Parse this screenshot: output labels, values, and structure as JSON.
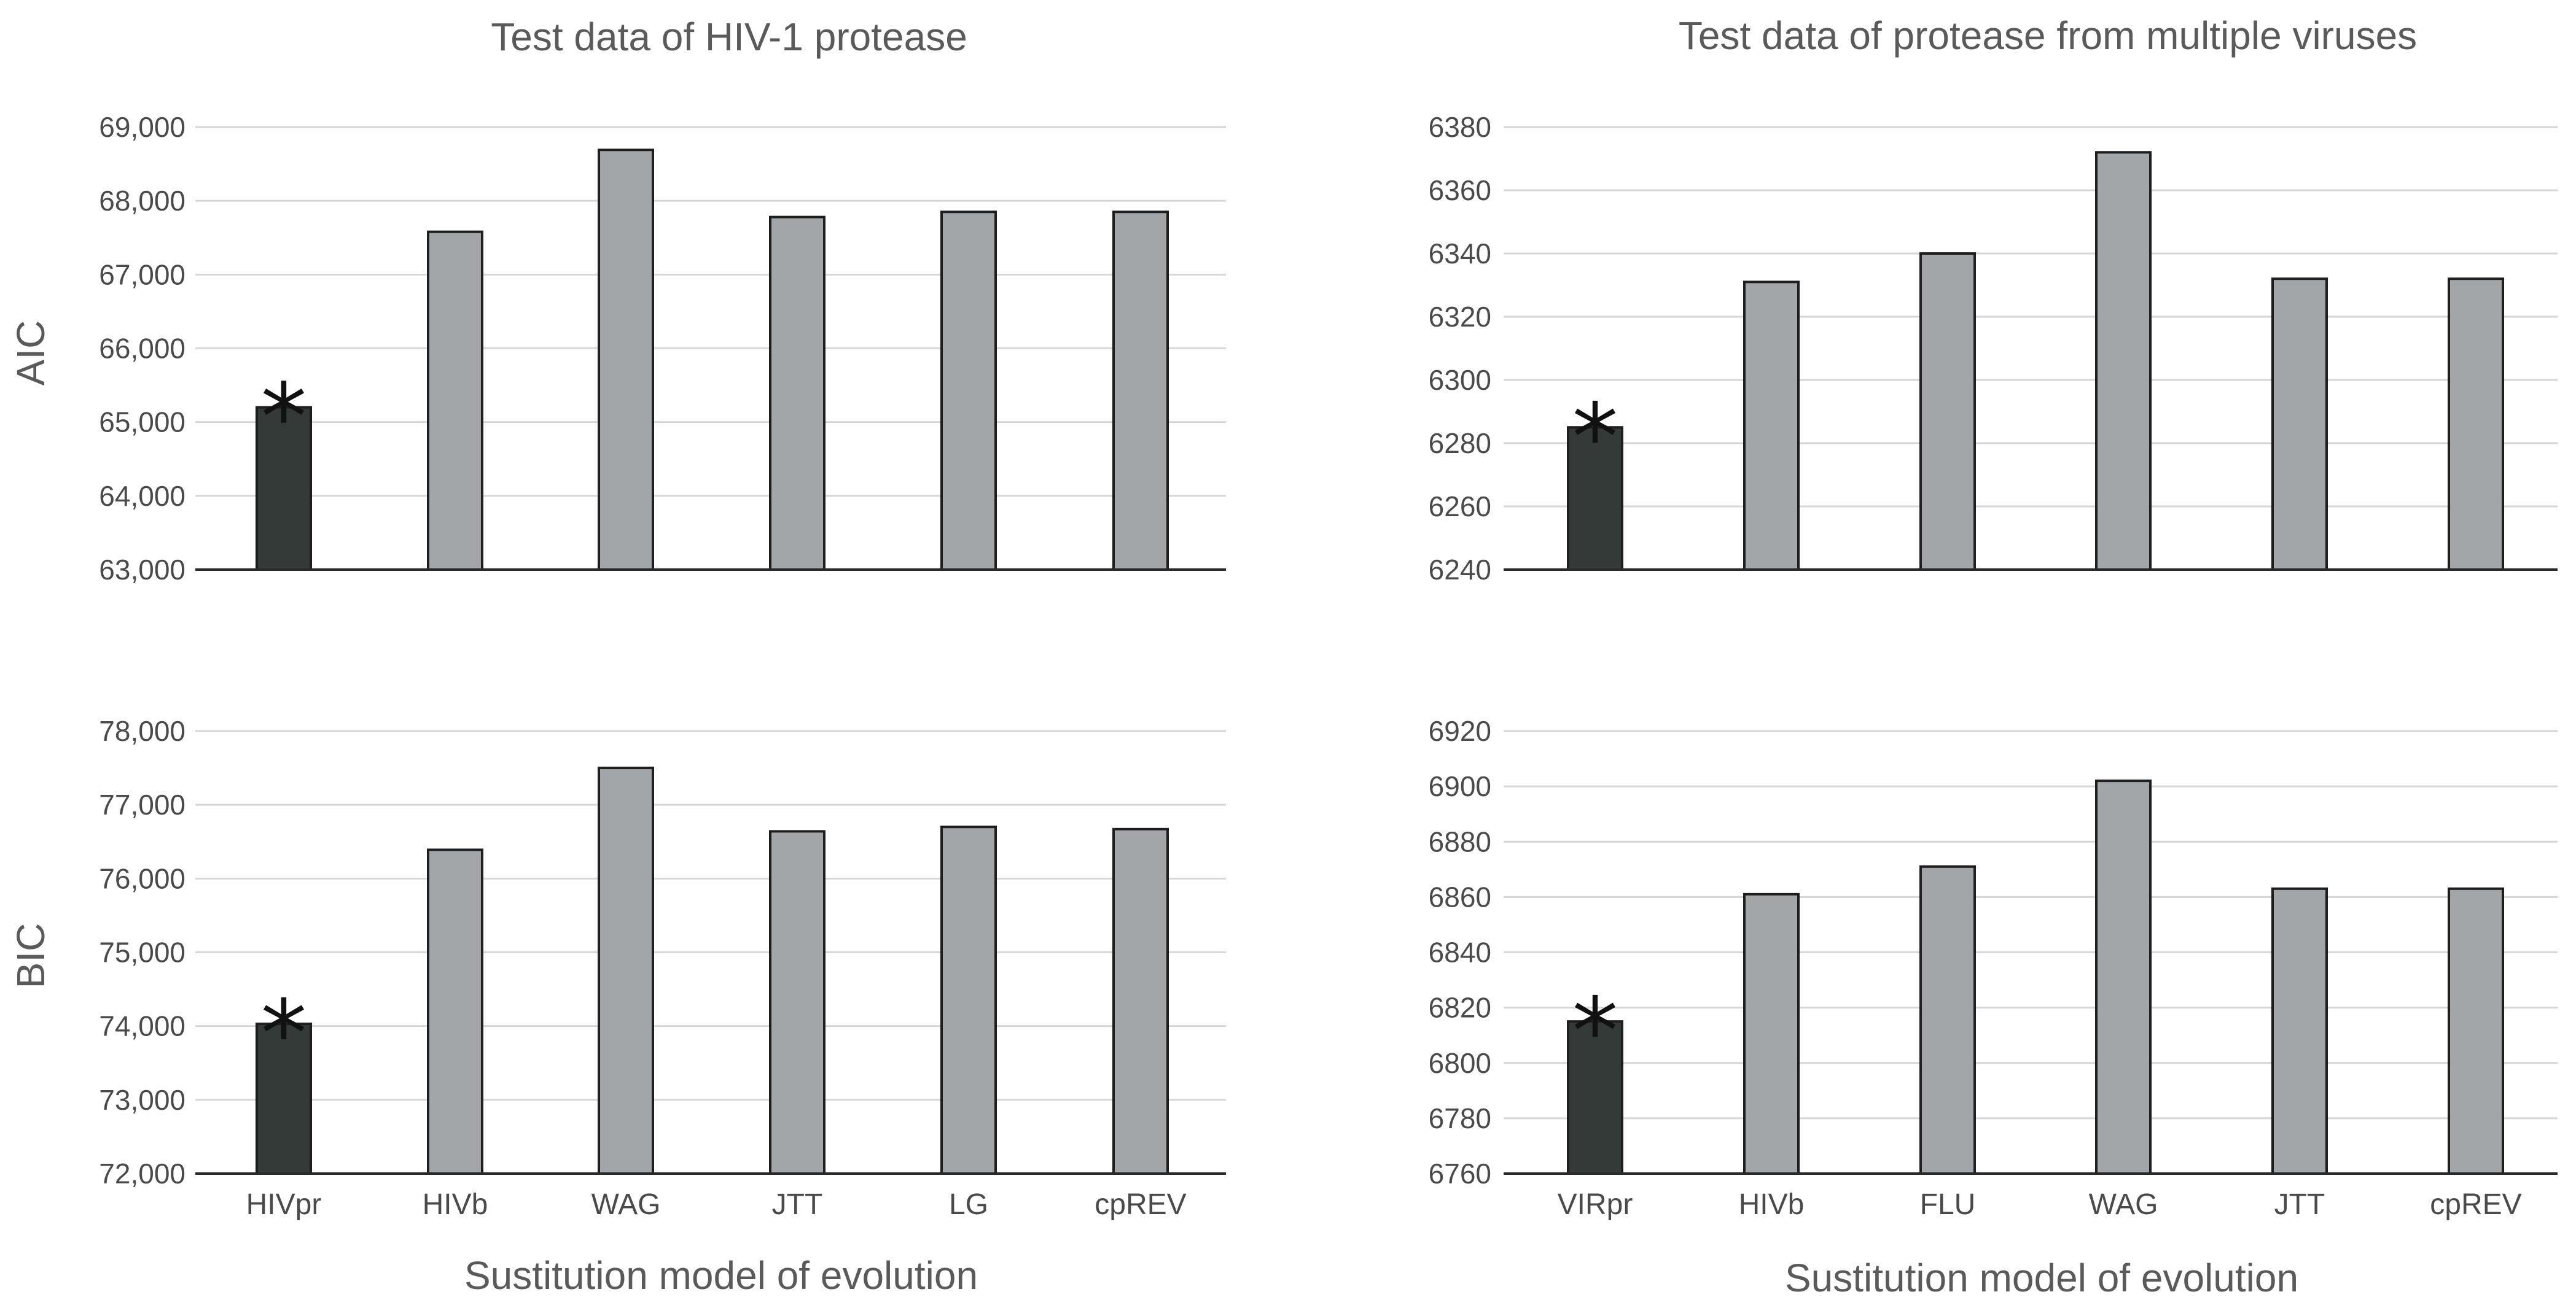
{
  "colors": {
    "highlight_bar": "#343a38",
    "normal_bar": "#a2a6a8",
    "grid": "#d6d6d6",
    "text": "#5a5a5a"
  },
  "figure": {
    "titles": [
      "Test data of HIV-1 protease",
      "Test data of protease from multiple viruses"
    ],
    "row_labels": [
      "AIC",
      "BIC"
    ],
    "xlabel": "Sustitution model of evolution",
    "marker": "*"
  },
  "chart_data": [
    {
      "type": "bar",
      "title": "Test data of HIV-1 protease",
      "ylabel": "AIC",
      "xlabel": "",
      "categories": [
        "HIVpr",
        "HIVb",
        "WAG",
        "JTT",
        "LG",
        "cpREV"
      ],
      "values": [
        65200,
        67580,
        68690,
        67780,
        67850,
        67850
      ],
      "highlight": "HIVpr",
      "ylim": [
        63000,
        69000
      ],
      "yticks": [
        63000,
        64000,
        65000,
        66000,
        67000,
        68000,
        69000
      ],
      "ytick_labels": [
        "63,000",
        "64,000",
        "65,000",
        "66,000",
        "67,000",
        "68,000",
        "69,000"
      ],
      "grid": true
    },
    {
      "type": "bar",
      "title": "Test data of protease from multiple viruses",
      "ylabel": "AIC",
      "xlabel": "",
      "categories": [
        "VIRpr",
        "HIVb",
        "FLU",
        "WAG",
        "JTT",
        "cpREV"
      ],
      "values": [
        6285,
        6331,
        6340,
        6372,
        6332,
        6332
      ],
      "highlight": "VIRpr",
      "ylim": [
        6240,
        6380
      ],
      "yticks": [
        6240,
        6260,
        6280,
        6300,
        6320,
        6340,
        6360,
        6380
      ],
      "ytick_labels": [
        "6240",
        "6260",
        "6280",
        "6300",
        "6320",
        "6340",
        "6360",
        "6380"
      ],
      "grid": true
    },
    {
      "type": "bar",
      "title": "",
      "ylabel": "BIC",
      "xlabel": "Sustitution model of evolution",
      "categories": [
        "HIVpr",
        "HIVb",
        "WAG",
        "JTT",
        "LG",
        "cpREV"
      ],
      "values": [
        74030,
        76390,
        77500,
        76640,
        76700,
        76670
      ],
      "highlight": "HIVpr",
      "ylim": [
        72000,
        78000
      ],
      "yticks": [
        72000,
        73000,
        74000,
        75000,
        76000,
        77000,
        78000
      ],
      "ytick_labels": [
        "72,000",
        "73,000",
        "74,000",
        "75,000",
        "76,000",
        "77,000",
        "78,000"
      ],
      "grid": true
    },
    {
      "type": "bar",
      "title": "",
      "ylabel": "BIC",
      "xlabel": "Sustitution model of evolution",
      "categories": [
        "VIRpr",
        "HIVb",
        "FLU",
        "WAG",
        "JTT",
        "cpREV"
      ],
      "values": [
        6815,
        6861,
        6871,
        6902,
        6863,
        6863
      ],
      "highlight": "VIRpr",
      "ylim": [
        6760,
        6920
      ],
      "yticks": [
        6760,
        6780,
        6800,
        6820,
        6840,
        6860,
        6880,
        6900,
        6920
      ],
      "ytick_labels": [
        "6760",
        "6780",
        "6800",
        "6820",
        "6840",
        "6860",
        "6880",
        "6900",
        "6920"
      ],
      "grid": true
    }
  ]
}
